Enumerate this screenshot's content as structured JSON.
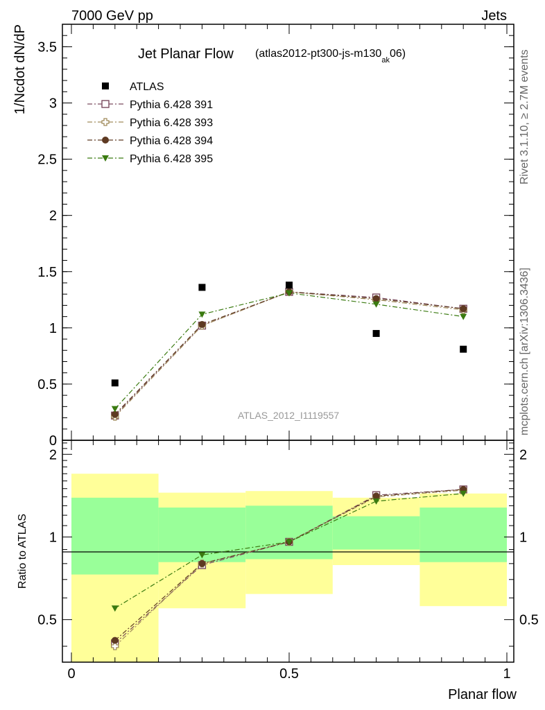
{
  "header": {
    "left": "7000 GeV pp",
    "right": "Jets",
    "side_top": "Rivet 3.1.10, ≥ 2.7M events",
    "side_bottom": "mcplots.cern.ch [arXiv:1306.3436]"
  },
  "chart_data": {
    "type": "scatter",
    "title": "Jet Planar Flow",
    "subtitle_main": "(atlas2012-pt300-js-m130",
    "subtitle_sub": "ak",
    "subtitle_end": "06)",
    "watermark": "ATLAS_2012_I1119557",
    "xlabel": "Planar flow",
    "ylabel": "1/Ncdot dN/dP",
    "ratio_ylabel": "Ratio to ATLAS",
    "xlim": [
      0,
      1
    ],
    "ylim": [
      0,
      3.7
    ],
    "ratio_ylim": [
      0.35,
      2.25
    ],
    "x_ticks": [
      "0",
      "0.5",
      "1"
    ],
    "y_ticks": [
      "0",
      "0.5",
      "1",
      "1.5",
      "2",
      "2.5",
      "3",
      "3.5"
    ],
    "ratio_ticks": [
      "0.5",
      "1",
      "2"
    ],
    "x": [
      0.1,
      0.3,
      0.5,
      0.7,
      0.9
    ],
    "bin_edges": [
      0,
      0.2,
      0.4,
      0.6,
      0.8,
      1.0
    ],
    "data": {
      "name": "ATLAS",
      "values": [
        0.51,
        1.36,
        1.38,
        0.95,
        0.81
      ]
    },
    "series": [
      {
        "name": "Pythia 6.428 391",
        "color": "#7a4b5e",
        "marker": "open-square",
        "values": [
          0.22,
          1.02,
          1.32,
          1.27,
          1.17
        ],
        "ratio": [
          0.41,
          0.79,
          0.96,
          1.42,
          1.49
        ]
      },
      {
        "name": "Pythia 6.428 393",
        "color": "#a08a5a",
        "marker": "open-cross",
        "values": [
          0.21,
          1.02,
          1.32,
          1.25,
          1.16
        ],
        "ratio": [
          0.4,
          0.8,
          0.96,
          1.4,
          1.48
        ]
      },
      {
        "name": "Pythia 6.428 394",
        "color": "#5e3a22",
        "marker": "filled-circle",
        "values": [
          0.23,
          1.03,
          1.32,
          1.26,
          1.17
        ],
        "ratio": [
          0.42,
          0.8,
          0.96,
          1.41,
          1.49
        ]
      },
      {
        "name": "Pythia 6.428 395",
        "color": "#3a7a10",
        "marker": "filled-triangle",
        "values": [
          0.28,
          1.12,
          1.31,
          1.21,
          1.1
        ],
        "ratio": [
          0.55,
          0.86,
          0.96,
          1.35,
          1.44
        ]
      }
    ],
    "band_yellow": [
      [
        0.35,
        1.7
      ],
      [
        0.55,
        1.45
      ],
      [
        0.62,
        1.47
      ],
      [
        0.79,
        1.39
      ],
      [
        0.56,
        1.44
      ]
    ],
    "band_green": [
      [
        0.73,
        1.39
      ],
      [
        0.81,
        1.28
      ],
      [
        0.83,
        1.3
      ],
      [
        0.9,
        1.19
      ],
      [
        0.81,
        1.28
      ]
    ],
    "colors": {
      "band_yellow": "#ffff99",
      "band_green": "#99ff99",
      "data": "#000000"
    },
    "legend_position": "top-left"
  }
}
